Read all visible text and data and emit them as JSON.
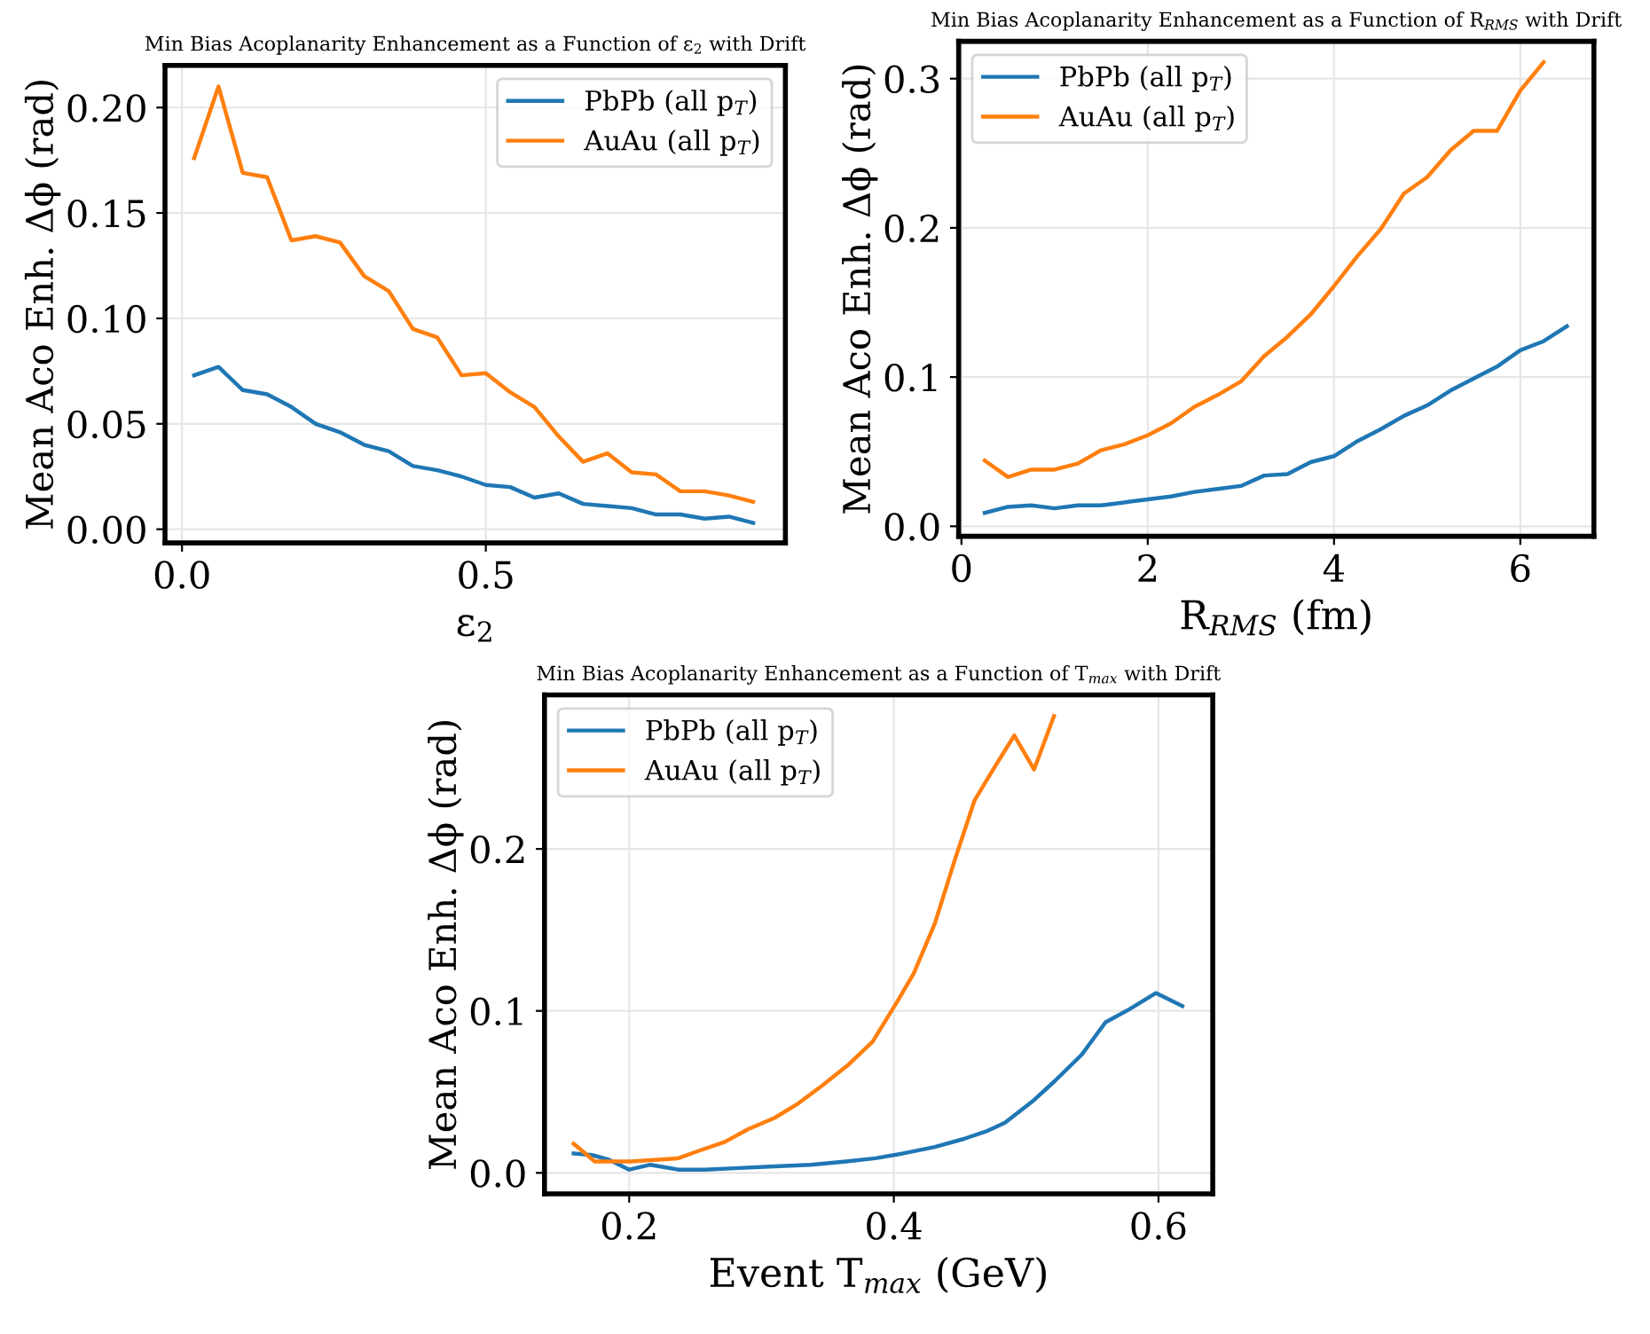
{
  "chart_data": [
    {
      "type": "line",
      "title": "Min Bias Acoplanarity Enhancement as a Function of ε$_{2}$ with Drift",
      "xlabel": "ε$_{2}$",
      "ylabel": "Mean Aco Enh. Δϕ (rad)",
      "xlim": [
        -0.028,
        0.993
      ],
      "ylim": [
        -0.0065,
        0.22
      ],
      "xticks": [
        {
          "value": 0,
          "label": "0.0"
        },
        0.5
      ],
      "yticks": [
        {
          "value": 0,
          "label": "0.00"
        },
        0.05,
        {
          "value": 0.1,
          "label": "0.10"
        },
        0.15,
        {
          "value": 0.2,
          "label": "0.20"
        }
      ],
      "grid": true,
      "legend": "top right",
      "x": [
        0.02,
        0.06,
        0.1,
        0.14,
        0.18,
        0.22,
        0.26,
        0.3,
        0.34,
        0.38,
        0.42,
        0.46,
        0.5,
        0.54,
        0.58,
        0.62,
        0.66,
        0.7,
        0.74,
        0.78,
        0.82,
        0.86,
        0.9,
        0.94
      ],
      "series": [
        {
          "name": "PbPb (all p$_{T}$)",
          "color": "#1f77b4",
          "values": [
            0.073,
            0.077,
            0.066,
            0.064,
            0.058,
            0.05,
            0.046,
            0.04,
            0.037,
            0.03,
            0.028,
            0.025,
            0.021,
            0.02,
            0.015,
            0.017,
            0.012,
            0.011,
            0.01,
            0.007,
            0.007,
            0.005,
            0.006,
            0.003
          ]
        },
        {
          "name": "AuAu (all p$_{T}$)",
          "color": "#ff7f0e",
          "values": [
            0.176,
            0.21,
            0.169,
            0.167,
            0.137,
            0.139,
            0.136,
            0.12,
            0.113,
            0.095,
            0.091,
            0.073,
            0.074,
            0.065,
            0.058,
            0.044,
            0.032,
            0.036,
            0.027,
            0.026,
            0.018,
            0.018,
            0.016,
            0.013
          ]
        }
      ]
    },
    {
      "type": "line",
      "title": "Min Bias Acoplanarity Enhancement as a Function of R$_{RMS}$ with Drift",
      "xlabel": "R$_{RMS}$ (fm)",
      "ylabel": "Mean Aco Enh. Δϕ (rad)",
      "xlim": [
        -0.03,
        6.79
      ],
      "ylim": [
        -0.0067,
        0.325
      ],
      "xticks": [
        0,
        2,
        4,
        6
      ],
      "yticks": [
        {
          "value": 0,
          "label": "0.0"
        },
        0.1,
        0.2,
        0.3
      ],
      "grid": true,
      "legend": "top left",
      "series": [
        {
          "name": "PbPb (all p$_{T}$)",
          "color": "#1f77b4",
          "x": [
            0.25,
            0.5,
            0.75,
            1.0,
            1.25,
            1.5,
            1.75,
            2.0,
            2.25,
            2.5,
            2.75,
            3.0,
            3.25,
            3.5,
            3.75,
            4.0,
            4.25,
            4.5,
            4.75,
            5.0,
            5.25,
            5.5,
            5.75,
            6.0,
            6.25,
            6.5
          ],
          "values": [
            0.009,
            0.013,
            0.014,
            0.012,
            0.014,
            0.014,
            0.016,
            0.018,
            0.02,
            0.023,
            0.025,
            0.027,
            0.034,
            0.035,
            0.043,
            0.047,
            0.057,
            0.065,
            0.074,
            0.081,
            0.091,
            0.099,
            0.107,
            0.118,
            0.124,
            0.134
          ]
        },
        {
          "name": "AuAu (all p$_{T}$)",
          "color": "#ff7f0e",
          "x": [
            0.25,
            0.5,
            0.75,
            1.0,
            1.25,
            1.5,
            1.75,
            2.0,
            2.25,
            2.5,
            2.75,
            3.0,
            3.25,
            3.5,
            3.75,
            4.0,
            4.25,
            4.5,
            4.75,
            5.0,
            5.25,
            5.5,
            5.75,
            6.0,
            6.25
          ],
          "values": [
            0.044,
            0.033,
            0.038,
            0.038,
            0.042,
            0.051,
            0.055,
            0.061,
            0.069,
            0.08,
            0.088,
            0.097,
            0.114,
            0.127,
            0.142,
            0.161,
            0.181,
            0.199,
            0.223,
            0.234,
            0.252,
            0.265,
            0.265,
            0.292,
            0.311
          ]
        }
      ]
    },
    {
      "type": "line",
      "title": "Min Bias Acoplanarity Enhancement as a Function of T$_{max}$ with Drift",
      "xlabel": "Event T$_{max}$ (GeV)",
      "ylabel": "Mean Aco Enh. Δϕ (rad)",
      "xlim": [
        0.136,
        0.641
      ],
      "ylim": [
        -0.013,
        0.295
      ],
      "xticks": [
        0.2,
        0.4,
        0.6
      ],
      "yticks": [
        {
          "value": 0,
          "label": "0.0"
        },
        0.1,
        0.2
      ],
      "grid": true,
      "legend": "top left",
      "series": [
        {
          "name": "PbPb (all p$_{T}$)",
          "color": "#1f77b4",
          "x": [
            0.158,
            0.172,
            0.185,
            0.2,
            0.216,
            0.237,
            0.257,
            0.283,
            0.31,
            0.337,
            0.364,
            0.386,
            0.407,
            0.431,
            0.453,
            0.471,
            0.484,
            0.506,
            0.522,
            0.542,
            0.56,
            0.578,
            0.598,
            0.618
          ],
          "values": [
            0.012,
            0.011,
            0.008,
            0.002,
            0.005,
            0.002,
            0.002,
            0.003,
            0.004,
            0.005,
            0.007,
            0.009,
            0.012,
            0.016,
            0.021,
            0.026,
            0.031,
            0.045,
            0.057,
            0.073,
            0.093,
            0.101,
            0.111,
            0.103
          ]
        },
        {
          "name": "AuAu (all p$_{T}$)",
          "color": "#ff7f0e",
          "x": [
            0.158,
            0.174,
            0.19,
            0.201,
            0.219,
            0.237,
            0.254,
            0.272,
            0.29,
            0.31,
            0.328,
            0.346,
            0.366,
            0.384,
            0.402,
            0.415,
            0.431,
            0.446,
            0.461,
            0.475,
            0.491,
            0.506,
            0.521
          ],
          "values": [
            0.018,
            0.007,
            0.007,
            0.007,
            0.008,
            0.009,
            0.014,
            0.019,
            0.027,
            0.034,
            0.043,
            0.054,
            0.067,
            0.081,
            0.105,
            0.123,
            0.154,
            0.193,
            0.23,
            0.249,
            0.27,
            0.249,
            0.282
          ]
        }
      ]
    }
  ]
}
